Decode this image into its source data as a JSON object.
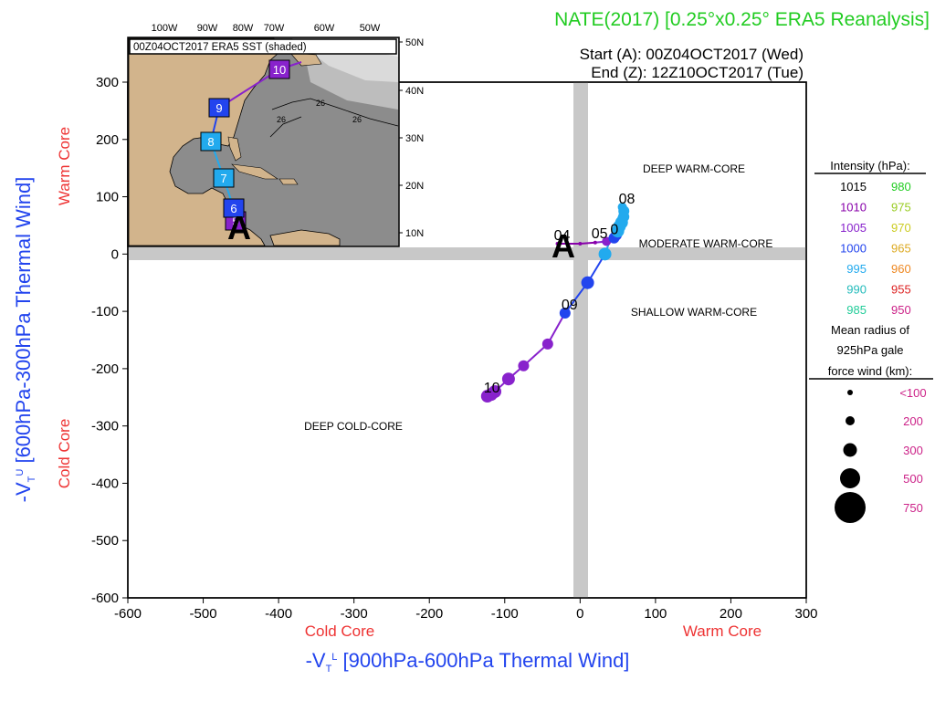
{
  "header": {
    "title": "NATE(2017) [0.25°x0.25° ERA5 Reanalysis]",
    "start": "Start (A): 00Z04OCT2017 (Wed)",
    "end": "End (Z): 12Z10OCT2017 (Tue)",
    "title_color": "#22cc22"
  },
  "axes": {
    "x_label_main": "-V",
    "x_label_sub": "T",
    "x_label_sup": "L",
    "x_label_rest": " [900hPa-600hPa Thermal Wind]",
    "y_label_main": "-V",
    "y_label_sub": "T",
    "y_label_sup": "U",
    "y_label_rest": " [600hPa-300hPa Thermal Wind]",
    "x_cold": "Cold Core",
    "x_warm": "Warm Core",
    "y_warm": "Warm Core",
    "y_cold": "Cold Core",
    "label_color": "#2244ee",
    "core_color": "#ee3333"
  },
  "regions": {
    "deep_warm": "DEEP WARM-CORE",
    "moderate_warm": "MODERATE WARM-CORE",
    "shallow_warm": "SHALLOW WARM-CORE",
    "deep_cold": "DEEP COLD-CORE"
  },
  "legend": {
    "intensity_title": "Intensity (hPa):",
    "intensity": [
      {
        "p": "1015",
        "c": "#000000"
      },
      {
        "p": "980",
        "c": "#22cc22"
      },
      {
        "p": "1010",
        "c": "#8800aa"
      },
      {
        "p": "975",
        "c": "#99cc22"
      },
      {
        "p": "1005",
        "c": "#8822cc"
      },
      {
        "p": "970",
        "c": "#cccc22"
      },
      {
        "p": "1000",
        "c": "#2244ee"
      },
      {
        "p": "965",
        "c": "#ddaa22"
      },
      {
        "p": "995",
        "c": "#22aaee"
      },
      {
        "p": "960",
        "c": "#ee8822"
      },
      {
        "p": "990",
        "c": "#22bbbb"
      },
      {
        "p": "955",
        "c": "#dd2222"
      },
      {
        "p": "985",
        "c": "#22cc99"
      },
      {
        "p": "950",
        "c": "#cc2288"
      }
    ],
    "radius_title_1": "Mean radius of",
    "radius_title_2": "925hPa gale",
    "radius_title_3": "force wind (km):",
    "radius_items": [
      "<100",
      "200",
      "300",
      "500",
      "750"
    ],
    "radius_color": "#cc2288"
  },
  "markers": {
    "start": "A",
    "labels": [
      "04",
      "05",
      "06",
      "07",
      "08",
      "09",
      "10"
    ]
  },
  "inset": {
    "title": "00Z04OCT2017 ERA5 SST (shaded)",
    "lon_labels": [
      "100W",
      "90W",
      "80W",
      "70W",
      "60W",
      "50W"
    ],
    "lat_labels": [
      "50N",
      "40N",
      "30N",
      "20N",
      "10N"
    ],
    "contour_labels": [
      "26",
      "26",
      "26"
    ],
    "track_days": [
      {
        "day": "5",
        "color": "#8822cc"
      },
      {
        "day": "6",
        "color": "#2244ee"
      },
      {
        "day": "7",
        "color": "#22aaee"
      },
      {
        "day": "8",
        "color": "#22aaee"
      },
      {
        "day": "9",
        "color": "#2244ee"
      },
      {
        "day": "10",
        "color": "#8822cc"
      }
    ],
    "start_marker": "A"
  },
  "chart_data": {
    "type": "scatter",
    "title": "NATE(2017) [0.25°x0.25° ERA5 Reanalysis]",
    "xlabel": "-VT L [900hPa-600hPa Thermal Wind]",
    "ylabel": "-VT U [600hPa-300hPa Thermal Wind]",
    "xlim": [
      -600,
      300
    ],
    "ylim": [
      -600,
      300
    ],
    "xticks": [
      -600,
      -500,
      -400,
      -300,
      -200,
      -100,
      0,
      100,
      200,
      300
    ],
    "yticks": [
      300,
      200,
      100,
      0,
      -100,
      -200,
      -300,
      -400,
      -500,
      -600
    ],
    "grid": false,
    "points": [
      {
        "x": -30,
        "y": 18,
        "p": 1010,
        "r": 2,
        "label": "04"
      },
      {
        "x": 0,
        "y": 18,
        "p": 1010,
        "r": 2
      },
      {
        "x": 20,
        "y": 20,
        "p": 1008,
        "r": 2
      },
      {
        "x": 35,
        "y": 22,
        "p": 1004,
        "r": 5
      },
      {
        "x": 45,
        "y": 28,
        "p": 1002,
        "r": 6
      },
      {
        "x": 48,
        "y": 33,
        "p": 998,
        "r": 6
      },
      {
        "x": 50,
        "y": 40,
        "p": 996,
        "r": 7
      },
      {
        "x": 52,
        "y": 48,
        "p": 995,
        "r": 7
      },
      {
        "x": 55,
        "y": 55,
        "p": 995,
        "r": 7
      },
      {
        "x": 58,
        "y": 65,
        "p": 995,
        "r": 6
      },
      {
        "x": 58,
        "y": 75,
        "p": 995,
        "r": 6
      },
      {
        "x": 56,
        "y": 82,
        "p": 995,
        "r": 5,
        "label": "08"
      },
      {
        "x": 33,
        "y": 0,
        "p": 995,
        "r": 7
      },
      {
        "x": 10,
        "y": -50,
        "p": 1000,
        "r": 7
      },
      {
        "x": -20,
        "y": -103,
        "p": 1000,
        "r": 6,
        "label": "09"
      },
      {
        "x": -43,
        "y": -157,
        "p": 1005,
        "r": 6
      },
      {
        "x": -75,
        "y": -195,
        "p": 1005,
        "r": 6
      },
      {
        "x": -95,
        "y": -218,
        "p": 1005,
        "r": 7
      },
      {
        "x": -113,
        "y": -240,
        "p": 1005,
        "r": 7
      },
      {
        "x": -118,
        "y": -245,
        "p": 1005,
        "r": 7
      },
      {
        "x": -123,
        "y": -248,
        "p": 1005,
        "r": 7,
        "label": "10"
      }
    ],
    "extra_labels": [
      {
        "text": "05",
        "x": 15,
        "y": 28
      },
      {
        "text": "0",
        "x": 40,
        "y": 35
      }
    ]
  }
}
